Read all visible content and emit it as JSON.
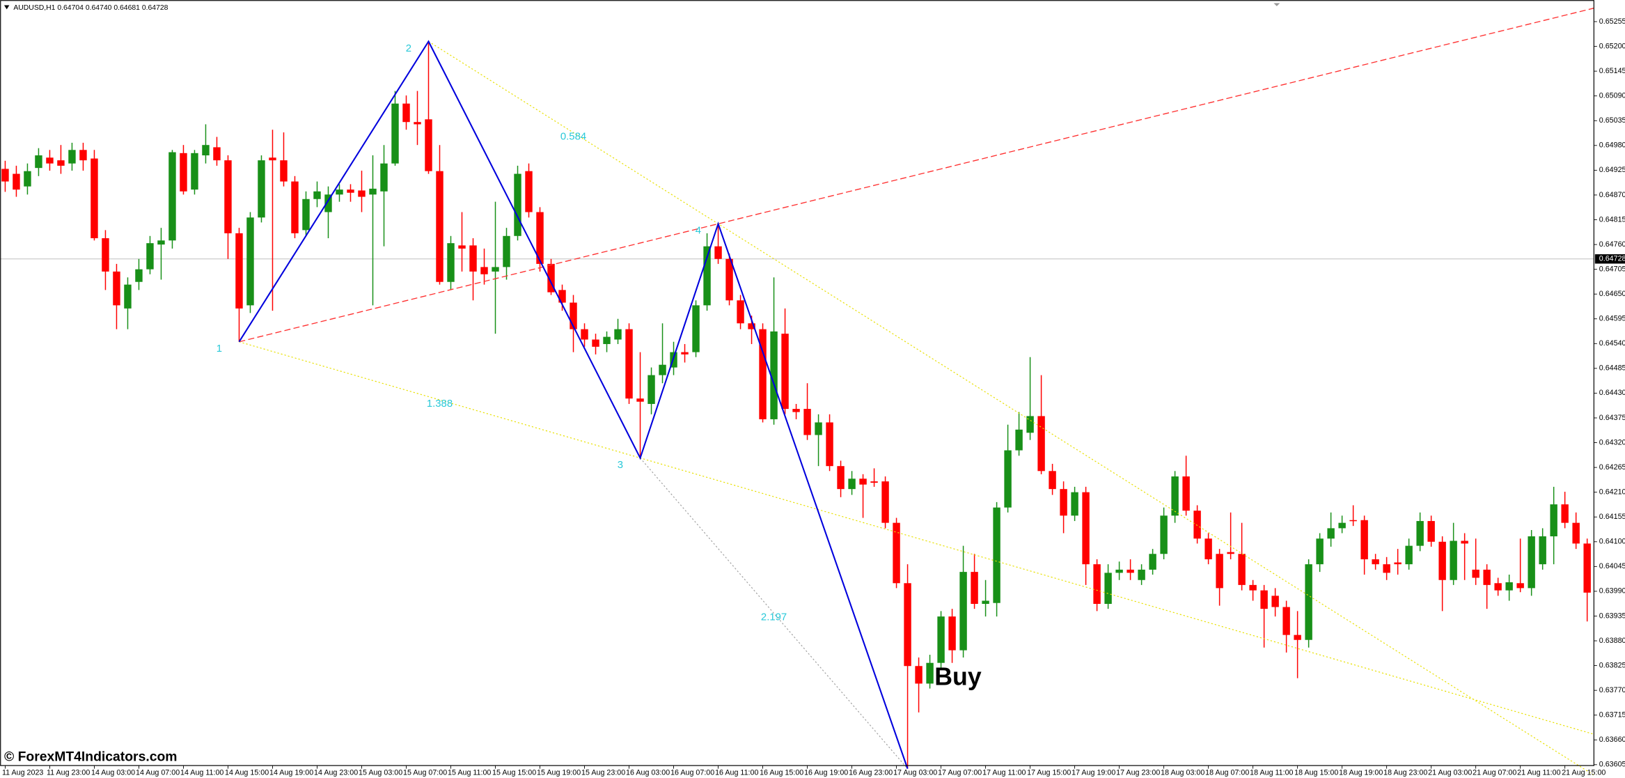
{
  "chart_data": {
    "type": "candlestick",
    "title": "AUDUSD,H1  0.64704 0.64740 0.64681 0.64728",
    "watermark": "© ForexMT4Indicators.com",
    "annotation": "Buy",
    "up_color": "#189018",
    "down_color": "#ff0000",
    "current_price": {
      "value": 0.64728,
      "label": "0.64728"
    },
    "ylim": [
      0.63603,
      0.65303
    ],
    "yticks": [
      0.65255,
      {
        "value": 0.652,
        "label": "0.65200"
      },
      0.65145,
      {
        "value": 0.6509,
        "label": "0.65090"
      },
      0.65035,
      {
        "value": 0.6498,
        "label": "0.64980"
      },
      0.64925,
      {
        "value": 0.6487,
        "label": "0.64870"
      },
      0.64815,
      {
        "value": 0.6476,
        "label": "0.64760"
      },
      0.64705,
      {
        "value": 0.6465,
        "label": "0.64650"
      },
      0.64595,
      {
        "value": 0.6454,
        "label": "0.64540"
      },
      0.64485,
      {
        "value": 0.6443,
        "label": "0.64430"
      },
      0.64375,
      {
        "value": 0.6432,
        "label": "0.64320"
      },
      0.64265,
      {
        "value": 0.6421,
        "label": "0.64210"
      },
      0.64155,
      {
        "value": 0.641,
        "label": "0.64100"
      },
      0.64045,
      {
        "value": 0.6399,
        "label": "0.63990"
      },
      0.63935,
      {
        "value": 0.6388,
        "label": "0.63880"
      },
      0.63825,
      {
        "value": 0.6377,
        "label": "0.63770"
      },
      0.63715,
      {
        "value": 0.6366,
        "label": "0.63660"
      },
      0.63605
    ],
    "categories": [
      "11 Aug 2023",
      null,
      null,
      null,
      "11 Aug 23:00",
      null,
      null,
      null,
      "14 Aug 03:00",
      null,
      null,
      null,
      "14 Aug 07:00",
      null,
      null,
      null,
      "14 Aug 11:00",
      null,
      null,
      null,
      "14 Aug 15:00",
      null,
      null,
      null,
      "14 Aug 19:00",
      null,
      null,
      null,
      "14 Aug 23:00",
      null,
      null,
      null,
      "15 Aug 03:00",
      null,
      null,
      null,
      "15 Aug 07:00",
      null,
      null,
      null,
      "15 Aug 11:00",
      null,
      null,
      null,
      "15 Aug 15:00",
      null,
      null,
      null,
      "15 Aug 19:00",
      null,
      null,
      null,
      "15 Aug 23:00",
      null,
      null,
      null,
      "16 Aug 03:00",
      null,
      null,
      null,
      "16 Aug 07:00",
      null,
      null,
      null,
      "16 Aug 11:00",
      null,
      null,
      null,
      "16 Aug 15:00",
      null,
      null,
      null,
      "16 Aug 19:00",
      null,
      null,
      null,
      "16 Aug 23:00",
      null,
      null,
      null,
      "17 Aug 03:00",
      null,
      null,
      null,
      "17 Aug 07:00",
      null,
      null,
      null,
      "17 Aug 11:00",
      null,
      null,
      null,
      "17 Aug 15:00",
      null,
      null,
      null,
      "17 Aug 19:00",
      null,
      null,
      null,
      "17 Aug 23:00",
      null,
      null,
      null,
      "18 Aug 03:00",
      null,
      null,
      null,
      "18 Aug 07:00",
      null,
      null,
      null,
      "18 Aug 11:00",
      null,
      null,
      null,
      "18 Aug 15:00",
      null,
      null,
      null,
      "18 Aug 19:00",
      null,
      null,
      null,
      "18 Aug 23:00",
      null,
      null,
      null,
      "21 Aug 03:00",
      null,
      null,
      null,
      "21 Aug 07:00",
      null,
      null,
      null,
      "21 Aug 11:00",
      null,
      null,
      null,
      "21 Aug 15:00",
      null,
      null
    ],
    "open": [
      0.64928,
      0.64917,
      0.64889,
      0.6493,
      0.64953,
      0.64947,
      0.6494,
      0.6497,
      0.64951,
      0.64774,
      0.647,
      0.64618,
      0.64677,
      0.64705,
      0.6476,
      0.64769,
      0.64963,
      0.64882,
      0.64958,
      0.64976,
      0.64947,
      0.64785,
      0.64625,
      0.6482,
      0.64953,
      0.64947,
      0.649,
      0.64792,
      0.64861,
      0.64832,
      0.64871,
      0.64882,
      0.6488,
      0.64871,
      0.64878,
      0.6494,
      0.65073,
      0.65032,
      0.65038,
      0.64923,
      0.64677,
      0.64758,
      0.64758,
      0.6471,
      0.647,
      0.6471,
      0.64779,
      0.64923,
      0.64832,
      0.64717,
      0.64659,
      0.64631,
      0.64572,
      0.64549,
      0.64539,
      0.64549,
      0.64572,
      0.64418,
      0.64406,
      0.6447,
      0.64487,
      0.64521,
      0.64521,
      0.64625,
      0.64756,
      0.64728,
      0.64636,
      0.64585,
      0.64572,
      0.64372,
      0.64562,
      0.64395,
      0.64395,
      0.64337,
      0.64365,
      0.64268,
      0.64217,
      0.6424,
      0.64234,
      0.64234,
      0.64142,
      0.64008,
      0.63824,
      0.63785,
      0.63831,
      0.63934,
      0.63859,
      0.64033,
      0.63962,
      0.63964,
      0.64176,
      0.64303,
      0.64342,
      0.64379,
      0.64257,
      0.64217,
      0.64158,
      0.6421,
      0.6405,
      0.63962,
      0.64031,
      0.64038,
      0.64015,
      0.64038,
      0.64073,
      0.64158,
      0.64245,
      0.64169,
      0.64107,
      0.64073,
      0.64077,
      0.64073,
      0.64004,
      0.63992,
      0.6398,
      0.63955,
      0.63893,
      0.63882,
      0.6405,
      0.64107,
      0.6413,
      0.64148,
      0.64148,
      0.64061,
      0.6405,
      0.64054,
      0.6405,
      0.64091,
      0.64146,
      0.641,
      0.64015,
      0.64102,
      0.64038,
      0.64038,
      0.64008,
      0.63992,
      0.64008,
      0.63997,
      0.6405,
      0.64112,
      0.64183,
      0.64142,
      0.64096
    ],
    "high": [
      0.64946,
      0.64935,
      0.6494,
      0.64974,
      0.6497,
      0.64981,
      0.64986,
      0.64986,
      0.6497,
      0.64792,
      0.64717,
      0.64687,
      0.64728,
      0.64779,
      0.64797,
      0.6497,
      0.64981,
      0.6497,
      0.65027,
      0.64999,
      0.64958,
      0.64797,
      0.64832,
      0.64958,
      0.65015,
      0.65009,
      0.64912,
      0.64878,
      0.649,
      0.64889,
      0.64894,
      0.64894,
      0.64924,
      0.64958,
      0.64981,
      0.65101,
      0.65091,
      0.65101,
      0.65211,
      0.64981,
      0.64779,
      0.64832,
      0.64774,
      0.64751,
      0.64855,
      0.64797,
      0.64935,
      0.6494,
      0.64843,
      0.64728,
      0.64671,
      0.64648,
      0.64585,
      0.64562,
      0.64567,
      0.64595,
      0.64585,
      0.64521,
      0.64487,
      0.64585,
      0.64544,
      0.64539,
      0.64636,
      0.64785,
      0.64806,
      0.6474,
      0.64648,
      0.64602,
      0.64585,
      0.64687,
      0.64618,
      0.64406,
      0.64452,
      0.64383,
      0.64383,
      0.6428,
      0.64257,
      0.6425,
      0.64263,
      0.64245,
      0.64153,
      0.6405,
      0.63843,
      0.63849,
      0.63946,
      0.63951,
      0.64091,
      0.64073,
      0.64015,
      0.64188,
      0.6436,
      0.64388,
      0.6451,
      0.6447,
      0.64273,
      0.64234,
      0.64222,
      0.64222,
      0.64061,
      0.6405,
      0.64056,
      0.64061,
      0.6405,
      0.64084,
      0.64176,
      0.64257,
      0.64291,
      0.64181,
      0.64119,
      0.64084,
      0.64165,
      0.64142,
      0.64015,
      0.64004,
      0.63997,
      0.63969,
      0.63946,
      0.64061,
      0.64119,
      0.64165,
      0.64158,
      0.64181,
      0.64158,
      0.64073,
      0.64066,
      0.64084,
      0.64107,
      0.64165,
      0.64158,
      0.64112,
      0.64142,
      0.64119,
      0.64107,
      0.6405,
      0.6402,
      0.64027,
      0.64107,
      0.64126,
      0.6413,
      0.64222,
      0.64211,
      0.64165,
      0.64107
    ],
    "low": [
      0.64877,
      0.64866,
      0.64871,
      0.64912,
      0.64924,
      0.64917,
      0.64924,
      0.64924,
      0.64769,
      0.64659,
      0.64572,
      0.64572,
      0.64659,
      0.64694,
      0.64682,
      0.64751,
      0.64871,
      0.64871,
      0.6494,
      0.64935,
      0.64728,
      0.64544,
      0.64608,
      0.64809,
      0.64613,
      0.64889,
      0.64774,
      0.64779,
      0.64843,
      0.64774,
      0.64855,
      0.64855,
      0.64832,
      0.64625,
      0.64756,
      0.64935,
      0.65015,
      0.64981,
      0.64917,
      0.64671,
      0.64659,
      0.647,
      0.64636,
      0.64671,
      0.64562,
      0.64682,
      0.64769,
      0.6482,
      0.647,
      0.64648,
      0.64613,
      0.64521,
      0.64533,
      0.64516,
      0.64521,
      0.64539,
      0.64406,
      0.64286,
      0.64383,
      0.64452,
      0.6447,
      0.64498,
      0.6451,
      0.64613,
      0.64717,
      0.64625,
      0.64572,
      0.64539,
      0.64365,
      0.6436,
      0.64383,
      0.64372,
      0.64326,
      0.64268,
      0.64257,
      0.64199,
      0.64204,
      0.64153,
      0.64222,
      0.6413,
      0.63997,
      0.63596,
      0.63721,
      0.63774,
      0.6382,
      0.63831,
      0.63843,
      0.63951,
      0.63934,
      0.63934,
      0.64165,
      0.64291,
      0.64326,
      0.6425,
      0.64204,
      0.64119,
      0.64146,
      0.64004,
      0.63946,
      0.63951,
      0.64015,
      0.64015,
      0.64004,
      0.64027,
      0.64061,
      0.64142,
      0.64158,
      0.64096,
      0.6405,
      0.63958,
      0.64061,
      0.63992,
      0.63969,
      0.63865,
      0.63934,
      0.63854,
      0.63797,
      0.63865,
      0.64033,
      0.64089,
      0.64119,
      0.64135,
      0.64027,
      0.64038,
      0.64015,
      0.64027,
      0.64038,
      0.64079,
      0.64089,
      0.63946,
      0.64004,
      0.64015,
      0.64004,
      0.63951,
      0.6398,
      0.63969,
      0.63988,
      0.6398,
      0.64038,
      0.6405,
      0.6413,
      0.64084,
      0.63923
    ],
    "close": [
      0.649,
      0.64882,
      0.64923,
      0.64958,
      0.6494,
      0.64935,
      0.6497,
      0.64947,
      0.64774,
      0.647,
      0.64625,
      0.64671,
      0.64705,
      0.64763,
      0.64769,
      0.64965,
      0.64878,
      0.64963,
      0.64981,
      0.64947,
      0.64785,
      0.64618,
      0.6482,
      0.64947,
      0.64947,
      0.649,
      0.64785,
      0.64861,
      0.64878,
      0.64871,
      0.64882,
      0.64875,
      0.64866,
      0.64884,
      0.6494,
      0.65073,
      0.65032,
      0.65027,
      0.64923,
      0.64677,
      0.64763,
      0.64751,
      0.647,
      0.64694,
      0.6471,
      0.64779,
      0.64917,
      0.64832,
      0.64717,
      0.64654,
      0.64631,
      0.64572,
      0.64549,
      0.64533,
      0.64555,
      0.64572,
      0.64418,
      0.64411,
      0.6447,
      0.64493,
      0.64521,
      0.64516,
      0.64625,
      0.64756,
      0.64728,
      0.64636,
      0.64585,
      0.64572,
      0.64372,
      0.64567,
      0.64395,
      0.64388,
      0.64337,
      0.64365,
      0.64268,
      0.64217,
      0.6424,
      0.64227,
      0.64231,
      0.64142,
      0.64008,
      0.63824,
      0.63785,
      0.63831,
      0.63934,
      0.63859,
      0.64033,
      0.63962,
      0.63969,
      0.64176,
      0.64303,
      0.64349,
      0.64379,
      0.64257,
      0.64217,
      0.64158,
      0.6421,
      0.6405,
      0.63962,
      0.64031,
      0.64038,
      0.64031,
      0.64038,
      0.64073,
      0.64158,
      0.64245,
      0.64169,
      0.64107,
      0.64061,
      0.63997,
      0.64073,
      0.64004,
      0.63992,
      0.63951,
      0.63955,
      0.63893,
      0.63882,
      0.6405,
      0.64107,
      0.6413,
      0.64142,
      0.64146,
      0.64061,
      0.6405,
      0.64031,
      0.6405,
      0.64091,
      0.64146,
      0.641,
      0.64015,
      0.64102,
      0.64096,
      0.6402,
      0.64004,
      0.63992,
      0.6401,
      0.63997,
      0.64112,
      0.64112,
      0.64183,
      0.64142,
      0.64096,
      0.63987
    ],
    "pattern_points": [
      {
        "label": "1",
        "candle": 21,
        "value": 0.64544
      },
      {
        "label": "2",
        "candle": 38,
        "value": 0.65211
      },
      {
        "label": "3",
        "candle": 57,
        "value": 0.64286
      },
      {
        "label": "4",
        "candle": 64,
        "value": 0.64806
      },
      {
        "label": null,
        "candle": 81,
        "value": 0.63596
      }
    ],
    "ratios": [
      0.584,
      1.388,
      2.197
    ]
  }
}
